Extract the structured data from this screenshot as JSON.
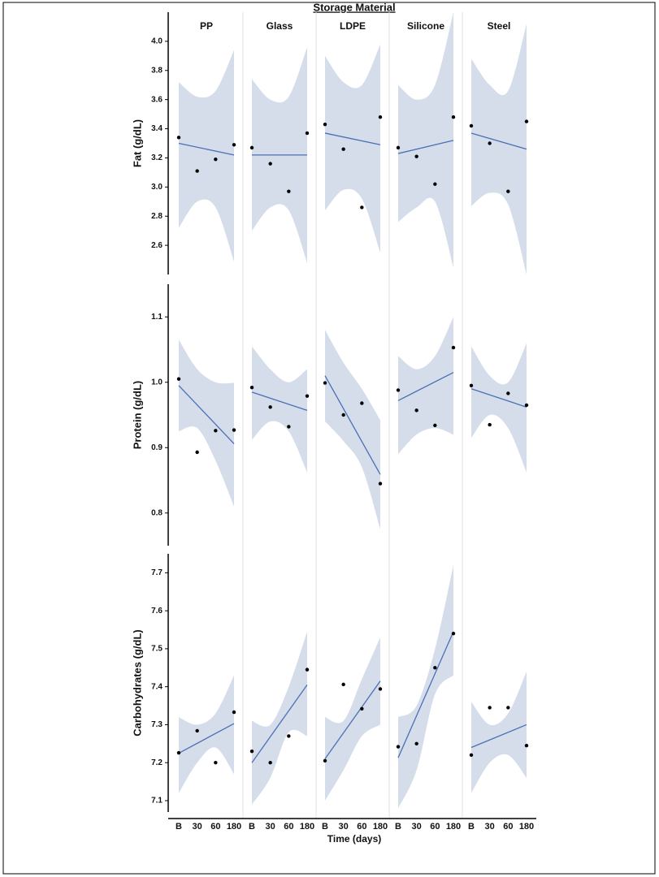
{
  "chart_data": {
    "type": "scatter",
    "title": "Storage Material",
    "x_label": "Time (days)",
    "facets": [
      "PP",
      "Glass",
      "LDPE",
      "Silicone",
      "Steel"
    ],
    "categories": [
      "B",
      "30",
      "60",
      "180"
    ],
    "point_color": "#000000",
    "fit_color": "#4a6fb5",
    "band_color": "#d6ddea",
    "panels": [
      {
        "y_label": "Fat (g/dL)",
        "ylim": [
          2.4,
          4.2
        ],
        "yticks": [
          2.6,
          2.8,
          {
            "value": 3,
            "label": "3.0"
          },
          3.2,
          3.4,
          3.6,
          3.8,
          {
            "value": 4,
            "label": "4.0"
          }
        ],
        "series": [
          {
            "values": [
              3.34,
              3.11,
              3.19,
              3.29
            ],
            "fit": [
              3.3,
              3.22
            ],
            "ci_upper": [
              3.72,
              3.62,
              3.66,
              3.94
            ],
            "ci_lower": [
              2.72,
              2.9,
              2.86,
              2.49
            ]
          },
          {
            "values": [
              3.27,
              3.16,
              2.97,
              3.37
            ],
            "fit": [
              3.22,
              3.22
            ],
            "ci_upper": [
              3.74,
              3.6,
              3.62,
              3.96
            ],
            "ci_lower": [
              2.7,
              2.86,
              2.84,
              2.48
            ]
          },
          {
            "values": [
              3.43,
              3.26,
              2.86,
              3.48
            ],
            "fit": [
              3.37,
              3.29
            ],
            "ci_upper": [
              3.9,
              3.72,
              3.7,
              3.98
            ],
            "ci_lower": [
              2.84,
              2.98,
              2.92,
              2.55
            ]
          },
          {
            "values": [
              3.27,
              3.21,
              3.02,
              3.48
            ],
            "fit": [
              3.23,
              3.32
            ],
            "ci_upper": [
              3.7,
              3.6,
              3.7,
              4.2
            ],
            "ci_lower": [
              2.76,
              2.86,
              2.9,
              2.45
            ]
          },
          {
            "values": [
              3.42,
              3.3,
              2.97,
              3.45
            ],
            "fit": [
              3.37,
              3.26
            ],
            "ci_upper": [
              3.88,
              3.7,
              3.66,
              4.12
            ],
            "ci_lower": [
              2.87,
              2.96,
              2.88,
              2.4
            ]
          }
        ]
      },
      {
        "y_label": "Protein (g/dL)",
        "ylim": [
          0.75,
          1.15
        ],
        "yticks": [
          0.8,
          0.9,
          {
            "value": 1,
            "label": "1.0"
          },
          1.1
        ],
        "series": [
          {
            "values": [
              1.005,
              0.893,
              0.926,
              0.927
            ],
            "fit": [
              0.995,
              0.906
            ],
            "ci_upper": [
              1.065,
              1.02,
              1.0,
              0.999
            ],
            "ci_lower": [
              0.925,
              0.93,
              0.88,
              0.81
            ]
          },
          {
            "values": [
              0.992,
              0.962,
              0.932,
              0.979
            ],
            "fit": [
              0.985,
              0.957
            ],
            "ci_upper": [
              1.055,
              1.02,
              1.0,
              1.02
            ],
            "ci_lower": [
              0.912,
              0.94,
              0.925,
              0.862
            ]
          },
          {
            "values": [
              0.999,
              0.95,
              0.968,
              0.845
            ],
            "fit": [
              1.01,
              0.859
            ],
            "ci_upper": [
              1.08,
              1.03,
              0.99,
              0.942
            ],
            "ci_lower": [
              0.94,
              0.91,
              0.87,
              0.775
            ]
          },
          {
            "values": [
              0.988,
              0.957,
              0.934,
              1.053
            ],
            "fit": [
              0.972,
              1.015
            ],
            "ci_upper": [
              1.04,
              1.02,
              1.04,
              1.1
            ],
            "ci_lower": [
              0.89,
              0.92,
              0.93,
              0.92
            ]
          },
          {
            "values": [
              0.995,
              0.935,
              0.983,
              0.965
            ],
            "fit": [
              0.99,
              0.962
            ],
            "ci_upper": [
              1.055,
              1.01,
              1.0,
              1.06
            ],
            "ci_lower": [
              0.915,
              0.95,
              0.93,
              0.862
            ]
          }
        ]
      },
      {
        "y_label": "Carbohydrates (g/dL)",
        "ylim": [
          7.07,
          7.75
        ],
        "yticks": [
          7.1,
          7.2,
          7.3,
          7.4,
          7.5,
          7.6,
          7.7
        ],
        "series": [
          {
            "values": [
              7.226,
              7.284,
              7.2,
              7.333
            ],
            "fit": [
              7.225,
              7.303
            ],
            "ci_upper": [
              7.32,
              7.3,
              7.33,
              7.43
            ],
            "ci_lower": [
              7.12,
              7.2,
              7.24,
              7.17
            ]
          },
          {
            "values": [
              7.23,
              7.2,
              7.27,
              7.445
            ],
            "fit": [
              7.2,
              7.405
            ],
            "ci_upper": [
              7.31,
              7.3,
              7.4,
              7.545
            ],
            "ci_lower": [
              7.09,
              7.16,
              7.28,
              7.27
            ]
          },
          {
            "values": [
              7.205,
              7.406,
              7.342,
              7.394
            ],
            "fit": [
              7.21,
              7.415
            ],
            "ci_upper": [
              7.32,
              7.31,
              7.42,
              7.53
            ],
            "ci_lower": [
              7.1,
              7.18,
              7.27,
              7.3
            ]
          },
          {
            "values": [
              7.242,
              7.25,
              7.45,
              7.54
            ],
            "fit": [
              7.213,
              7.545
            ],
            "ci_upper": [
              7.32,
              7.35,
              7.5,
              7.72
            ],
            "ci_lower": [
              7.08,
              7.18,
              7.38,
              7.43
            ]
          },
          {
            "values": [
              7.22,
              7.345,
              7.345,
              7.245
            ],
            "fit": [
              7.24,
              7.3
            ],
            "ci_upper": [
              7.36,
              7.3,
              7.33,
              7.44
            ],
            "ci_lower": [
              7.12,
              7.2,
              7.22,
              7.16
            ]
          }
        ]
      }
    ]
  }
}
